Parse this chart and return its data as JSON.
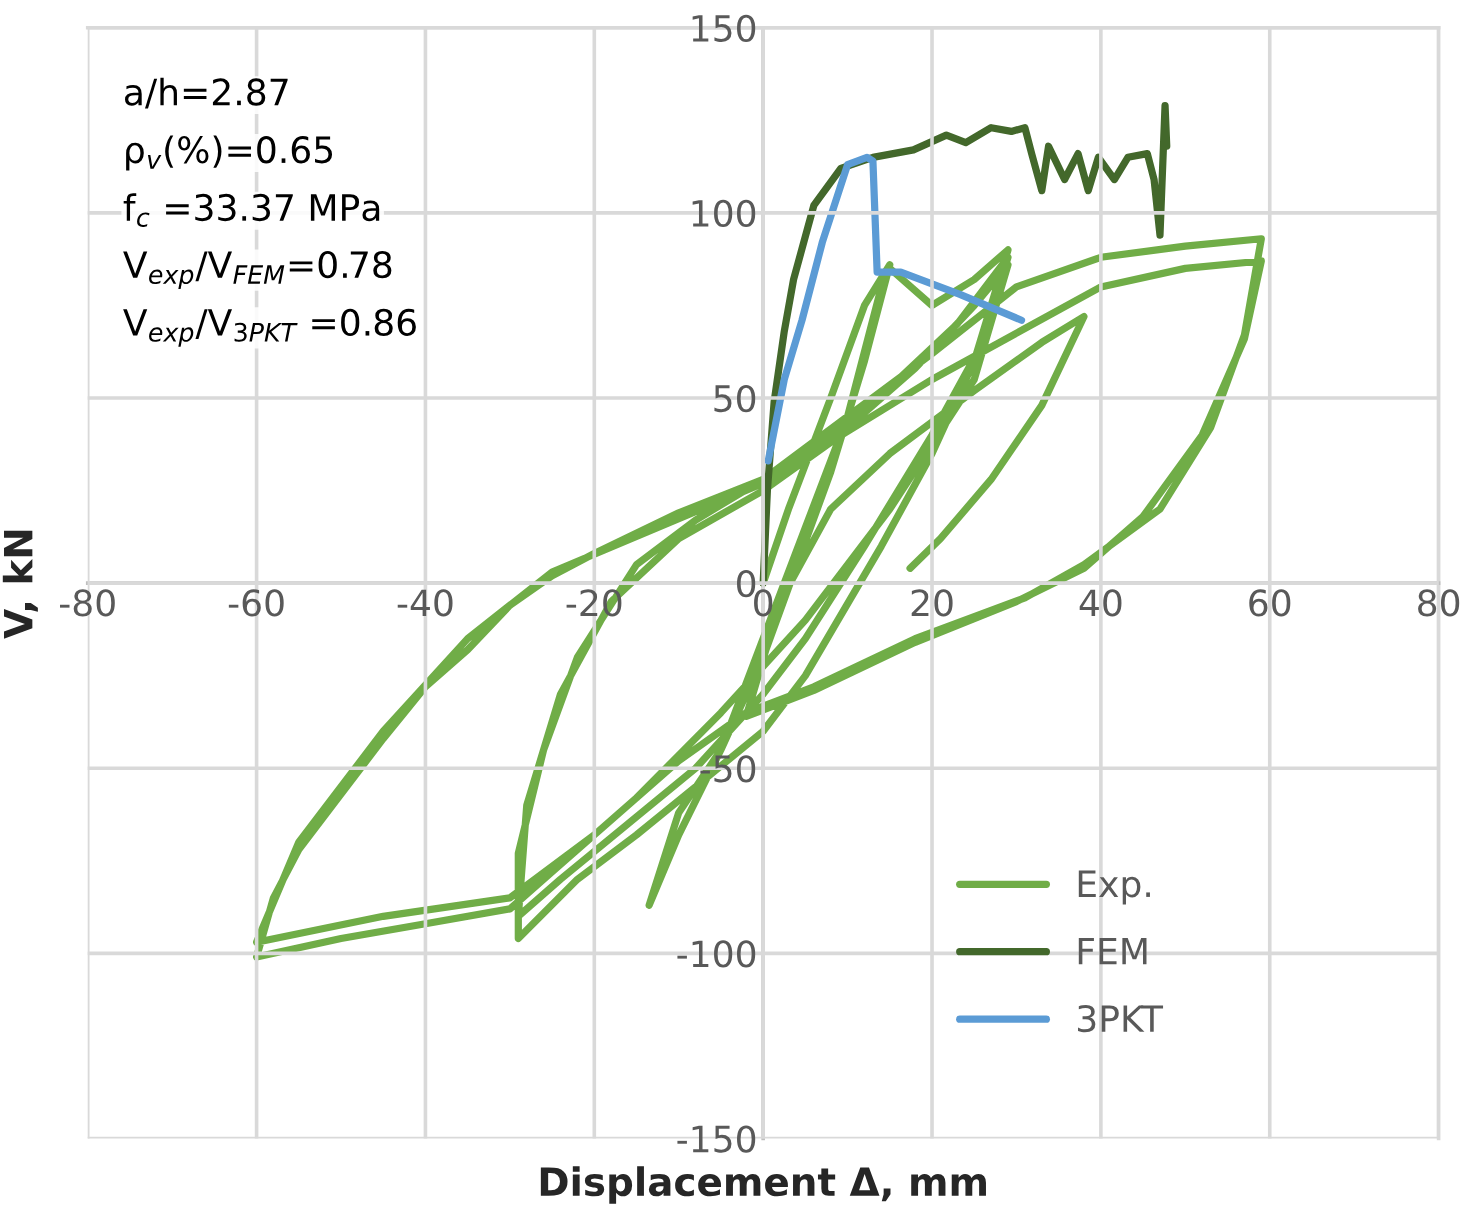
{
  "chart_data": {
    "type": "line",
    "xlabel": "Displacement Δ, mm",
    "ylabel": "V, kN",
    "xlim": [
      -80,
      80
    ],
    "xticks": [
      -80,
      -60,
      -40,
      -20,
      0,
      20,
      40,
      60,
      80
    ],
    "ylim": [
      -150,
      150
    ],
    "yticks": [
      -150,
      -100,
      -50,
      0,
      50,
      100,
      150
    ],
    "grid": true,
    "legend": "bottom right",
    "annotations": [
      "a/h=2.87",
      "ρ$_{v}$(%)=0.65",
      "f$_{c}$ =33.37 MPa",
      "V$_{exp}$/V$_{FEM}$=0.78",
      "V$_{exp}$/V$_{3PKT}$ =0.86"
    ],
    "series": [
      {
        "name": "Exp.",
        "color": "#70ad47",
        "x": [
          0,
          3,
          8,
          12,
          15,
          12,
          8,
          4,
          0,
          -5,
          -10,
          -13.5,
          -10,
          -5,
          0,
          5,
          10,
          14,
          15,
          20,
          25,
          29,
          25,
          20,
          14,
          5,
          0,
          -8,
          -15,
          -22,
          -29,
          -29,
          -26,
          -22,
          -15,
          -8,
          0,
          8,
          16,
          23,
          29,
          26,
          20,
          12,
          5,
          0,
          -8,
          -16,
          -24,
          -29,
          -28,
          -24,
          -18,
          -10,
          0,
          8,
          18,
          25,
          29,
          25,
          15,
          5,
          -5,
          -15,
          -25,
          -30,
          -40,
          -50,
          -60,
          -58,
          -55,
          -50,
          -45,
          -40,
          -35,
          -30,
          -25,
          -20,
          -10,
          0,
          10,
          20,
          30,
          40,
          50,
          59,
          57,
          53,
          47,
          38,
          31,
          18,
          6,
          -2,
          -10,
          -20,
          -30,
          -45,
          -60,
          -55,
          -45,
          -35,
          -25,
          0,
          20,
          40,
          50,
          59,
          57,
          52,
          45,
          38,
          30,
          18,
          6,
          -2,
          2,
          8,
          15,
          25,
          33,
          38,
          33,
          27,
          21,
          17.4
        ],
        "values": [
          0,
          20,
          50,
          75,
          86,
          60,
          30,
          5,
          -20,
          -45,
          -62,
          -87,
          -68,
          -45,
          -15,
          15,
          45,
          80,
          85,
          75,
          82,
          90,
          60,
          35,
          10,
          -25,
          -40,
          -55,
          -68,
          -80,
          -96,
          -73,
          -45,
          -20,
          5,
          17,
          28,
          40,
          55,
          70,
          88,
          65,
          40,
          10,
          -15,
          -30,
          -50,
          -65,
          -80,
          -90,
          -60,
          -30,
          -5,
          12,
          25,
          38,
          58,
          75,
          86,
          55,
          20,
          -10,
          -35,
          -58,
          -78,
          -88,
          -92,
          -96,
          -101,
          -85,
          -72,
          -57,
          -42,
          -28,
          -18,
          -6,
          2,
          8,
          19,
          28,
          45,
          62,
          80,
          88,
          91,
          93,
          67,
          42,
          20,
          5,
          -4,
          -15,
          -28,
          -35,
          -48,
          -68,
          -85,
          -90,
          -97,
          -70,
          -40,
          -15,
          3,
          27,
          55,
          80,
          85,
          87,
          66,
          40,
          18,
          4,
          -5,
          -16,
          -29,
          -36,
          -5,
          20,
          35,
          52,
          65,
          72,
          48,
          28,
          12,
          4
        ]
      },
      {
        "name": "FEM",
        "color": "#43682b",
        "x": [
          0,
          0.5,
          1.3,
          2.5,
          3.6,
          6,
          9.2,
          13,
          17.8,
          21.7,
          24,
          27,
          29.4,
          31,
          31.8,
          33,
          33.8,
          35.7,
          37.3,
          38.5,
          39.7,
          41.6,
          43.2,
          45.5,
          46.3,
          47,
          47.6,
          47.8
        ],
        "values": [
          0,
          25,
          49,
          68,
          82,
          102,
          112,
          115,
          117,
          121,
          119,
          123,
          122,
          123,
          116,
          106,
          118,
          109,
          116,
          106,
          115,
          109,
          115,
          116,
          109,
          94,
          129,
          118
        ]
      },
      {
        "name": "3PKT",
        "color": "#5b9bd5",
        "x": [
          0.6,
          2.5,
          4.6,
          7,
          10,
          12.3,
          13,
          13.5,
          16.3,
          23.3,
          30.6
        ],
        "values": [
          33,
          55,
          71,
          92,
          113,
          115,
          114,
          84,
          84,
          78,
          71
        ]
      }
    ]
  }
}
